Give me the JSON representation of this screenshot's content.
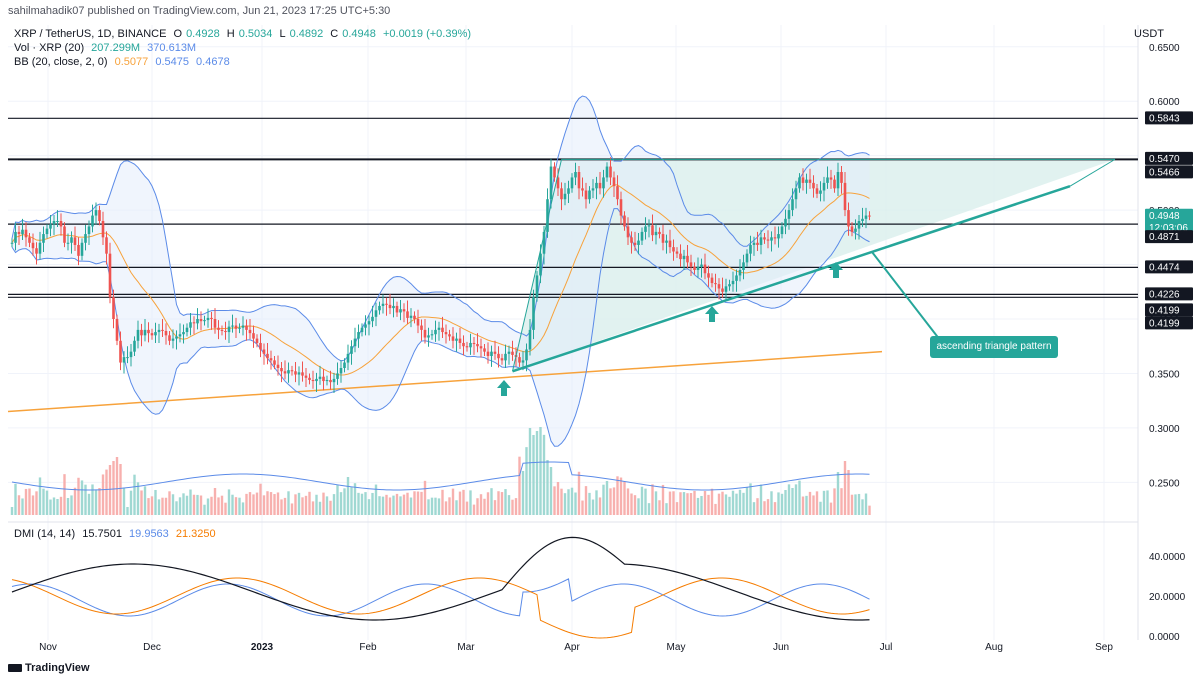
{
  "header": {
    "published": "sahilmahadik07 published on TradingView.com, Jun 21, 2023 17:25 UTC+5:30"
  },
  "legend": {
    "main": {
      "symbol": "XRP / TetherUS, 1D, BINANCE",
      "o_label": "O",
      "o": "0.4928",
      "h_label": "H",
      "h": "0.5034",
      "l_label": "L",
      "l": "0.4892",
      "c_label": "C",
      "c": "0.4948",
      "change": "+0.0019 (+0.39%)"
    },
    "vol": {
      "label": "Vol · XRP (20)",
      "v1": "207.299M",
      "v2": "370.613M"
    },
    "bb": {
      "label": "BB (20, close, 2, 0)",
      "v1": "0.5077",
      "v2": "0.5475",
      "v3": "0.4678"
    },
    "dmi": {
      "label": "DMI (14, 14)",
      "v1": "15.7501",
      "v2": "19.9563",
      "v3": "21.3250"
    }
  },
  "axis": {
    "currency": "USDT"
  },
  "annotation": {
    "text": "ascending triangle pattern"
  },
  "branding": {
    "logo": "TradingView"
  },
  "colors": {
    "up": "#26a69a",
    "down": "#ef5350",
    "bb": "#5b8be8",
    "basis": "#f7a23b",
    "support": "#f7a23b",
    "triangle_fill": "#d9efec",
    "pattern": "#26a69a",
    "adx": "#131722",
    "plus_di": "#5b8be8",
    "minus_di": "#f57c00"
  },
  "chart_data": {
    "type": "candlestick",
    "price_ticks": [
      "0.6500",
      "0.6000",
      "0.5500",
      "0.5000",
      "0.4500",
      "0.4000",
      "0.3500",
      "0.3000",
      "0.2500"
    ],
    "price_ylim": [
      0.22,
      0.67
    ],
    "dmi_ticks": [
      "40.0000",
      "20.0000",
      "0.0000"
    ],
    "time_labels": [
      "Nov",
      "Dec",
      "2023",
      "Feb",
      "Mar",
      "Apr",
      "May",
      "Jun",
      "Jul",
      "Aug",
      "Sep"
    ],
    "horizontal_levels": [
      {
        "price": 0.5843,
        "label": "0.5843"
      },
      {
        "price": 0.5466,
        "label": "0.5466"
      },
      {
        "price": 0.4871,
        "label": "0.4871"
      },
      {
        "price": 0.4474,
        "label": "0.4474"
      },
      {
        "price": 0.4226,
        "label": "0.4226"
      },
      {
        "price": 0.4199,
        "label": "0.4199"
      }
    ],
    "price_badges": [
      {
        "price": 0.5843,
        "label": "0.5843",
        "style": "dark"
      },
      {
        "price": 0.547,
        "label": "0.5470",
        "style": "dark"
      },
      {
        "price": 0.5466,
        "label": "0.5466",
        "style": "dark"
      },
      {
        "price": 0.4948,
        "label": "0.4948",
        "style": "green"
      },
      {
        "price": 0.4871,
        "label": "0.4871",
        "style": "dark"
      },
      {
        "price": 0.4474,
        "label": "0.4474",
        "style": "dark"
      },
      {
        "price": 0.4226,
        "label": "0.4226",
        "style": "dark"
      },
      {
        "price": 0.4199,
        "label": "0.4199",
        "style": "dark"
      },
      {
        "price": 0.4199,
        "label": "0.4199",
        "style": "dark"
      }
    ],
    "countdown": "12:03:06",
    "closes": [
      0.47,
      0.48,
      0.478,
      0.482,
      0.475,
      0.47,
      0.465,
      0.46,
      0.47,
      0.478,
      0.483,
      0.487,
      0.49,
      0.49,
      0.485,
      0.47,
      0.47,
      0.475,
      0.468,
      0.458,
      0.47,
      0.478,
      0.485,
      0.495,
      0.5,
      0.49,
      0.475,
      0.46,
      0.42,
      0.4,
      0.38,
      0.36,
      0.365,
      0.365,
      0.37,
      0.38,
      0.39,
      0.385,
      0.39,
      0.387,
      0.385,
      0.388,
      0.39,
      0.389,
      0.385,
      0.38,
      0.382,
      0.384,
      0.386,
      0.388,
      0.392,
      0.397,
      0.396,
      0.4,
      0.398,
      0.399,
      0.401,
      0.4,
      0.392,
      0.39,
      0.389,
      0.388,
      0.393,
      0.394,
      0.391,
      0.392,
      0.394,
      0.39,
      0.387,
      0.382,
      0.378,
      0.372,
      0.368,
      0.364,
      0.362,
      0.358,
      0.355,
      0.352,
      0.35,
      0.353,
      0.352,
      0.349,
      0.351,
      0.348,
      0.346,
      0.344,
      0.343,
      0.345,
      0.347,
      0.343,
      0.344,
      0.342,
      0.345,
      0.35,
      0.355,
      0.36,
      0.368,
      0.375,
      0.382,
      0.388,
      0.392,
      0.395,
      0.398,
      0.402,
      0.408,
      0.412,
      0.414,
      0.413,
      0.41,
      0.412,
      0.406,
      0.409,
      0.407,
      0.401,
      0.403,
      0.4,
      0.394,
      0.39,
      0.383,
      0.385,
      0.386,
      0.39,
      0.392,
      0.388,
      0.386,
      0.384,
      0.38,
      0.382,
      0.378,
      0.375,
      0.374,
      0.378,
      0.377,
      0.375,
      0.373,
      0.37,
      0.366,
      0.37,
      0.368,
      0.364,
      0.362,
      0.368,
      0.37,
      0.367,
      0.365,
      0.36,
      0.362,
      0.372,
      0.39,
      0.42,
      0.44,
      0.46,
      0.48,
      0.51,
      0.54,
      0.53,
      0.52,
      0.51,
      0.515,
      0.52,
      0.53,
      0.535,
      0.52,
      0.518,
      0.51,
      0.518,
      0.52,
      0.525,
      0.52,
      0.53,
      0.54,
      0.53,
      0.522,
      0.51,
      0.495,
      0.485,
      0.475,
      0.47,
      0.468,
      0.472,
      0.48,
      0.485,
      0.486,
      0.477,
      0.48,
      0.478,
      0.47,
      0.472,
      0.466,
      0.462,
      0.46,
      0.455,
      0.458,
      0.452,
      0.448,
      0.445,
      0.448,
      0.45,
      0.442,
      0.438,
      0.433,
      0.432,
      0.428,
      0.425,
      0.43,
      0.432,
      0.435,
      0.44,
      0.445,
      0.452,
      0.46,
      0.468,
      0.47,
      0.468,
      0.475,
      0.473,
      0.472,
      0.475,
      0.474,
      0.478,
      0.485,
      0.492,
      0.5,
      0.51,
      0.52,
      0.53,
      0.525,
      0.528,
      0.525,
      0.52,
      0.515,
      0.518,
      0.525,
      0.53,
      0.528,
      0.52,
      0.535,
      0.525,
      0.5,
      0.485,
      0.48,
      0.483,
      0.49,
      0.492,
      0.495,
      0.4948
    ]
  }
}
